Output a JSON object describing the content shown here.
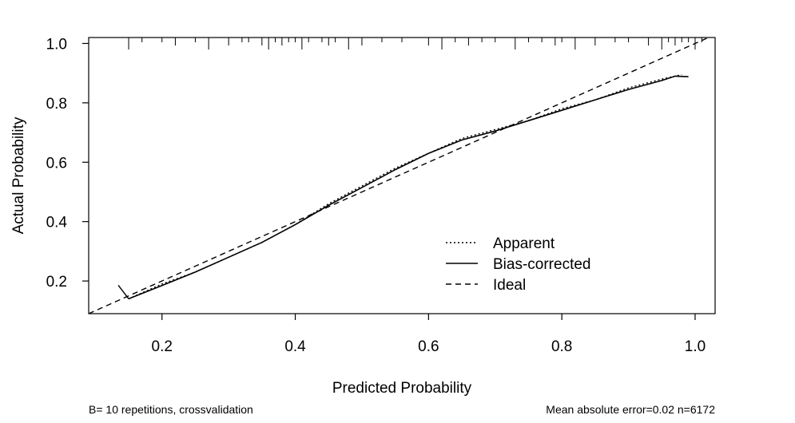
{
  "chart_data": {
    "type": "line",
    "title": "",
    "xlabel": "Predicted Probability",
    "ylabel": "Actual Probability",
    "xlim": [
      0.09,
      1.03
    ],
    "ylim": [
      0.09,
      1.02
    ],
    "x_ticks": [
      "0.2",
      "0.4",
      "0.6",
      "0.8",
      "1.0"
    ],
    "y_ticks": [
      "0.2",
      "0.4",
      "0.6",
      "0.8",
      "1.0"
    ],
    "legend_placement": "bottom-right",
    "series": [
      {
        "name": "Apparent",
        "style": "dotted",
        "x": [
          0.15,
          0.2,
          0.25,
          0.3,
          0.35,
          0.4,
          0.45,
          0.5,
          0.55,
          0.6,
          0.65,
          0.7,
          0.75,
          0.8,
          0.85,
          0.9,
          0.95,
          0.98
        ],
        "y": [
          0.14,
          0.19,
          0.23,
          0.28,
          0.33,
          0.39,
          0.46,
          0.52,
          0.58,
          0.63,
          0.68,
          0.71,
          0.74,
          0.78,
          0.81,
          0.85,
          0.88,
          0.895
        ]
      },
      {
        "name": "Bias-corrected",
        "style": "solid",
        "x": [
          0.15,
          0.2,
          0.25,
          0.3,
          0.35,
          0.4,
          0.45,
          0.5,
          0.55,
          0.6,
          0.65,
          0.7,
          0.75,
          0.8,
          0.85,
          0.9,
          0.95,
          0.97,
          0.99
        ],
        "y": [
          0.14,
          0.185,
          0.23,
          0.28,
          0.33,
          0.39,
          0.455,
          0.515,
          0.575,
          0.63,
          0.675,
          0.705,
          0.74,
          0.775,
          0.81,
          0.845,
          0.875,
          0.89,
          0.888
        ]
      },
      {
        "name": "Ideal",
        "style": "dashed",
        "x": [
          0.09,
          1.03
        ],
        "y": [
          0.09,
          1.03
        ]
      }
    ],
    "rug_x": [
      0.15,
      0.17,
      0.2,
      0.22,
      0.25,
      0.27,
      0.3,
      0.32,
      0.33,
      0.35,
      0.36,
      0.37,
      0.38,
      0.39,
      0.4,
      0.41,
      0.42,
      0.44,
      0.45,
      0.46,
      0.48,
      0.5,
      0.53,
      0.56,
      0.6,
      0.62,
      0.64,
      0.66,
      0.68,
      0.7,
      0.73,
      0.75,
      0.77,
      0.79,
      0.8,
      0.82,
      0.85,
      0.88,
      0.9,
      0.93,
      0.95,
      0.96,
      0.97,
      0.98,
      0.99,
      1.0,
      1.01
    ],
    "footer_left": "B= 10 repetitions, crossvalidation",
    "footer_right": "Mean absolute error=0.02 n=6172"
  }
}
